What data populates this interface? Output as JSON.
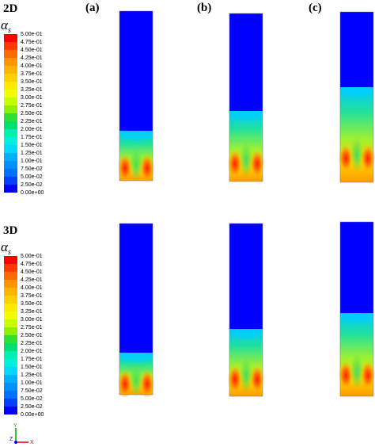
{
  "rows": [
    {
      "label": "2D",
      "symbol": "α",
      "symbol_sub": "s",
      "colorbar": {
        "labels": [
          "5.00e-01",
          "4.75e-01",
          "4.50e-01",
          "4.25e-01",
          "4.00e-01",
          "3.75e-01",
          "3.50e-01",
          "3.25e-01",
          "3.00e-01",
          "2.75e-01",
          "2.50e-01",
          "2.25e-01",
          "2.00e-01",
          "1.75e-01",
          "1.50e-01",
          "1.25e-01",
          "1.00e-01",
          "7.50e-02",
          "5.00e-02",
          "2.50e-02",
          "0.00e+00"
        ]
      }
    },
    {
      "label": "3D",
      "symbol": "α",
      "symbol_sub": "s",
      "colorbar": {
        "labels": [
          "5.00e-01",
          "4.75e-01",
          "4.50e-01",
          "4.25e-01",
          "4.00e-01",
          "3.75e-01",
          "3.50e-01",
          "3.25e-01",
          "3.00e-01",
          "2.75e-01",
          "2.50e-01",
          "2.25e-01",
          "2.00e-01",
          "1.75e-01",
          "1.50e-01",
          "1.25e-01",
          "1.00e-01",
          "7.50e-02",
          "5.00e-02",
          "2.50e-02",
          "0.00e+00"
        ]
      }
    }
  ],
  "columns": [
    "(a)",
    "(b)",
    "(c)"
  ],
  "axes_triad": [
    "Y",
    "Z",
    "X"
  ]
}
